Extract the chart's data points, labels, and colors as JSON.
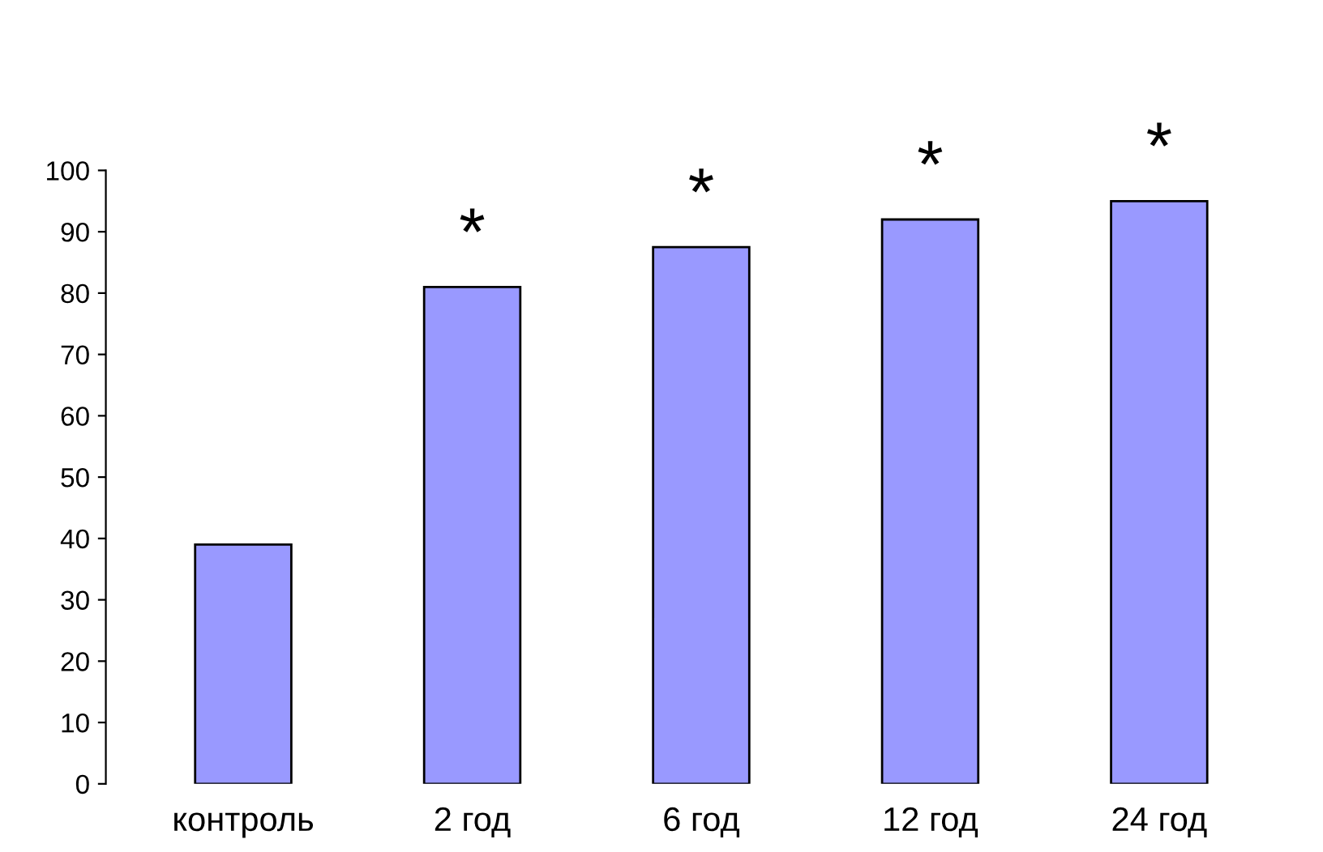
{
  "chart_data": {
    "type": "bar",
    "categories": [
      "контроль",
      "2 год",
      "6 год",
      "12 год",
      "24 год"
    ],
    "values": [
      39,
      81,
      87.5,
      92,
      95
    ],
    "color": "#9999ff",
    "ylim": [
      0,
      100
    ],
    "yticks": [
      0,
      10,
      20,
      30,
      40,
      50,
      60,
      70,
      80,
      90,
      100
    ],
    "annotations": [
      {
        "text": "*",
        "x": "2 год",
        "y": 81
      },
      {
        "text": "*",
        "x": "6 год",
        "y": 87.5
      },
      {
        "text": "*",
        "x": "12 год",
        "y": 92
      },
      {
        "text": "*",
        "x": "24 год",
        "y": 95
      }
    ]
  }
}
